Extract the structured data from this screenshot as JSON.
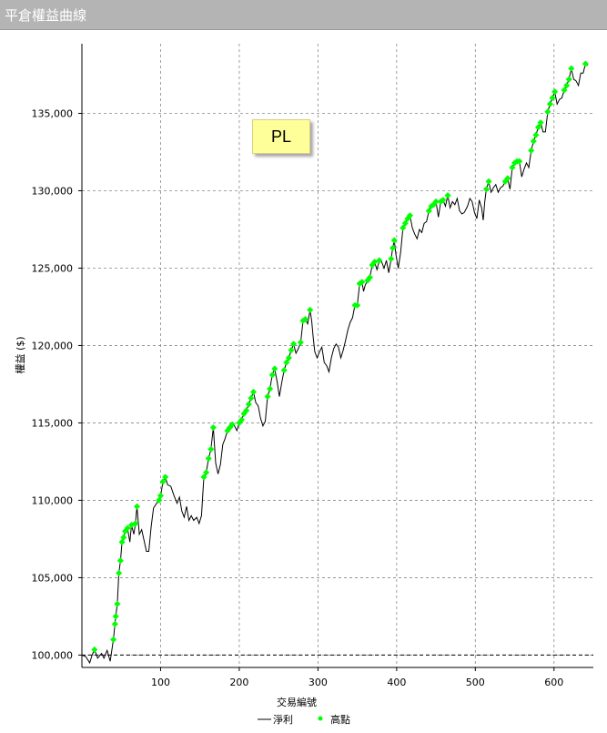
{
  "window": {
    "title": "平倉權益曲線"
  },
  "annotation": {
    "text": "PL"
  },
  "legend": {
    "net_label": "淨利",
    "high_label": "高點"
  },
  "colors": {
    "line": "#000000",
    "marker": "#00ff00",
    "title_bar": "#b4b4b4"
  },
  "chart_data": {
    "type": "line",
    "title": "",
    "xlabel": "交易編號",
    "ylabel": "權益 ($)",
    "xlim": [
      0,
      650
    ],
    "ylim": [
      99200,
      139500
    ],
    "xticks": [
      100,
      200,
      300,
      400,
      500,
      600
    ],
    "xtick_labels": [
      "100",
      "200",
      "300",
      "400",
      "500",
      "600"
    ],
    "yticks": [
      100000,
      105000,
      110000,
      115000,
      120000,
      125000,
      130000,
      135000
    ],
    "ytick_labels": [
      "100,000",
      "105,000",
      "110,000",
      "115,000",
      "120,000",
      "125,000",
      "130,000",
      "135,000"
    ],
    "baseline": 100000,
    "grid": true,
    "legend_position": "bottom",
    "series": [
      {
        "name": "淨利",
        "style": "line",
        "points": [
          [
            0,
            100000
          ],
          [
            5,
            99900
          ],
          [
            10,
            99500
          ],
          [
            13,
            100000
          ],
          [
            16,
            100350
          ],
          [
            20,
            99800
          ],
          [
            25,
            100100
          ],
          [
            28,
            99800
          ],
          [
            32,
            100300
          ],
          [
            36,
            99600
          ],
          [
            40,
            101000
          ],
          [
            43,
            102500
          ],
          [
            45,
            103300
          ],
          [
            47,
            105300
          ],
          [
            49,
            106100
          ],
          [
            51,
            107300
          ],
          [
            53,
            107600
          ],
          [
            55,
            108000
          ],
          [
            58,
            108200
          ],
          [
            61,
            107300
          ],
          [
            63,
            108400
          ],
          [
            66,
            107800
          ],
          [
            68,
            108500
          ],
          [
            70,
            109600
          ],
          [
            73,
            107800
          ],
          [
            76,
            108100
          ],
          [
            79,
            107400
          ],
          [
            82,
            106700
          ],
          [
            85,
            106700
          ],
          [
            88,
            108300
          ],
          [
            91,
            109500
          ],
          [
            95,
            109800
          ],
          [
            98,
            110000
          ],
          [
            100,
            110300
          ],
          [
            103,
            111200
          ],
          [
            106,
            111500
          ],
          [
            109,
            111000
          ],
          [
            113,
            110900
          ],
          [
            117,
            110300
          ],
          [
            121,
            109800
          ],
          [
            124,
            110200
          ],
          [
            127,
            109300
          ],
          [
            130,
            108900
          ],
          [
            133,
            109600
          ],
          [
            136,
            108700
          ],
          [
            139,
            109000
          ],
          [
            142,
            108700
          ],
          [
            146,
            108900
          ],
          [
            149,
            108500
          ],
          [
            152,
            109000
          ],
          [
            155,
            111500
          ],
          [
            158,
            111800
          ],
          [
            161,
            112700
          ],
          [
            164,
            113300
          ],
          [
            167,
            114700
          ],
          [
            170,
            112400
          ],
          [
            173,
            111700
          ],
          [
            176,
            112300
          ],
          [
            179,
            113600
          ],
          [
            182,
            114000
          ],
          [
            185,
            114500
          ],
          [
            188,
            114700
          ],
          [
            191,
            114900
          ],
          [
            194,
            114800
          ],
          [
            197,
            114500
          ],
          [
            200,
            115000
          ],
          [
            203,
            115200
          ],
          [
            206,
            115600
          ],
          [
            209,
            115800
          ],
          [
            212,
            116200
          ],
          [
            215,
            116600
          ],
          [
            218,
            117000
          ],
          [
            221,
            116300
          ],
          [
            224,
            116100
          ],
          [
            227,
            115300
          ],
          [
            230,
            114800
          ],
          [
            233,
            115100
          ],
          [
            236,
            116700
          ],
          [
            239,
            117200
          ],
          [
            242,
            118100
          ],
          [
            245,
            118500
          ],
          [
            248,
            117700
          ],
          [
            251,
            116700
          ],
          [
            254,
            117600
          ],
          [
            257,
            118400
          ],
          [
            260,
            118900
          ],
          [
            263,
            119200
          ],
          [
            266,
            119700
          ],
          [
            269,
            120100
          ],
          [
            272,
            119500
          ],
          [
            275,
            119800
          ],
          [
            278,
            120200
          ],
          [
            281,
            121600
          ],
          [
            284,
            121700
          ],
          [
            287,
            121400
          ],
          [
            290,
            122300
          ],
          [
            292,
            121600
          ],
          [
            294,
            120500
          ],
          [
            296,
            119600
          ],
          [
            299,
            119200
          ],
          [
            302,
            119600
          ],
          [
            305,
            119900
          ],
          [
            308,
            118900
          ],
          [
            311,
            118700
          ],
          [
            314,
            118300
          ],
          [
            317,
            119200
          ],
          [
            320,
            119800
          ],
          [
            323,
            120100
          ],
          [
            326,
            119900
          ],
          [
            329,
            119200
          ],
          [
            332,
            119700
          ],
          [
            335,
            120300
          ],
          [
            338,
            121000
          ],
          [
            341,
            121500
          ],
          [
            344,
            121800
          ],
          [
            347,
            122600
          ],
          [
            350,
            122600
          ],
          [
            353,
            124000
          ],
          [
            356,
            124100
          ],
          [
            358,
            123500
          ],
          [
            360,
            123900
          ],
          [
            363,
            124200
          ],
          [
            366,
            124400
          ],
          [
            369,
            125200
          ],
          [
            372,
            125400
          ],
          [
            375,
            124900
          ],
          [
            378,
            125500
          ],
          [
            381,
            125400
          ],
          [
            384,
            125000
          ],
          [
            387,
            125500
          ],
          [
            390,
            124700
          ],
          [
            393,
            125600
          ],
          [
            395,
            126300
          ],
          [
            397,
            126800
          ],
          [
            399,
            125900
          ],
          [
            402,
            125000
          ],
          [
            405,
            126000
          ],
          [
            408,
            127600
          ],
          [
            411,
            127900
          ],
          [
            414,
            128200
          ],
          [
            417,
            128400
          ],
          [
            420,
            127600
          ],
          [
            423,
            127200
          ],
          [
            426,
            126900
          ],
          [
            429,
            127500
          ],
          [
            432,
            127300
          ],
          [
            435,
            127900
          ],
          [
            438,
            128000
          ],
          [
            441,
            128700
          ],
          [
            444,
            129000
          ],
          [
            447,
            129100
          ],
          [
            450,
            129300
          ],
          [
            453,
            128300
          ],
          [
            456,
            129300
          ],
          [
            459,
            129400
          ],
          [
            462,
            129000
          ],
          [
            465,
            129700
          ],
          [
            468,
            128900
          ],
          [
            471,
            129300
          ],
          [
            474,
            129100
          ],
          [
            477,
            129500
          ],
          [
            480,
            128700
          ],
          [
            483,
            128500
          ],
          [
            486,
            128600
          ],
          [
            490,
            129000
          ],
          [
            493,
            129500
          ],
          [
            496,
            129300
          ],
          [
            499,
            128600
          ],
          [
            502,
            128200
          ],
          [
            505,
            129400
          ],
          [
            508,
            128900
          ],
          [
            510,
            128100
          ],
          [
            512,
            129300
          ],
          [
            514,
            130100
          ],
          [
            517,
            130600
          ],
          [
            520,
            129900
          ],
          [
            523,
            130200
          ],
          [
            526,
            130400
          ],
          [
            529,
            129900
          ],
          [
            532,
            130200
          ],
          [
            535,
            130300
          ],
          [
            538,
            130600
          ],
          [
            541,
            130800
          ],
          [
            544,
            130100
          ],
          [
            547,
            131500
          ],
          [
            550,
            131800
          ],
          [
            553,
            131900
          ],
          [
            556,
            131900
          ],
          [
            559,
            130900
          ],
          [
            562,
            131400
          ],
          [
            565,
            131800
          ],
          [
            568,
            131500
          ],
          [
            571,
            132600
          ],
          [
            574,
            133200
          ],
          [
            577,
            133600
          ],
          [
            580,
            134100
          ],
          [
            583,
            134400
          ],
          [
            586,
            133800
          ],
          [
            589,
            133800
          ],
          [
            592,
            135100
          ],
          [
            595,
            135600
          ],
          [
            598,
            136000
          ],
          [
            601,
            136400
          ],
          [
            604,
            135600
          ],
          [
            607,
            135900
          ],
          [
            610,
            136000
          ],
          [
            613,
            136500
          ],
          [
            616,
            136800
          ],
          [
            619,
            137200
          ],
          [
            622,
            137900
          ],
          [
            625,
            137200
          ],
          [
            628,
            137100
          ],
          [
            631,
            136800
          ],
          [
            634,
            137600
          ],
          [
            637,
            137600
          ],
          [
            640,
            138200
          ],
          [
            643,
            138100
          ]
        ]
      },
      {
        "name": "高點",
        "style": "markers",
        "points": [
          [
            16,
            100350
          ],
          [
            40,
            101000
          ],
          [
            42,
            102000
          ],
          [
            43,
            102500
          ],
          [
            45,
            103300
          ],
          [
            47,
            105300
          ],
          [
            49,
            106100
          ],
          [
            51,
            107300
          ],
          [
            53,
            107600
          ],
          [
            55,
            108000
          ],
          [
            58,
            108200
          ],
          [
            63,
            108400
          ],
          [
            68,
            108500
          ],
          [
            70,
            109600
          ],
          [
            98,
            110000
          ],
          [
            100,
            110300
          ],
          [
            103,
            111200
          ],
          [
            106,
            111500
          ],
          [
            155,
            111500
          ],
          [
            158,
            111800
          ],
          [
            161,
            112700
          ],
          [
            164,
            113300
          ],
          [
            167,
            114700
          ],
          [
            185,
            114500
          ],
          [
            188,
            114700
          ],
          [
            191,
            114900
          ],
          [
            200,
            115000
          ],
          [
            203,
            115200
          ],
          [
            206,
            115600
          ],
          [
            209,
            115800
          ],
          [
            212,
            116200
          ],
          [
            215,
            116600
          ],
          [
            218,
            117000
          ],
          [
            236,
            116700
          ],
          [
            239,
            117200
          ],
          [
            242,
            118100
          ],
          [
            245,
            118500
          ],
          [
            257,
            118400
          ],
          [
            260,
            118900
          ],
          [
            263,
            119200
          ],
          [
            266,
            119700
          ],
          [
            269,
            120100
          ],
          [
            278,
            120200
          ],
          [
            281,
            121600
          ],
          [
            284,
            121700
          ],
          [
            290,
            122300
          ],
          [
            347,
            122600
          ],
          [
            350,
            122600
          ],
          [
            353,
            124000
          ],
          [
            356,
            124100
          ],
          [
            363,
            124200
          ],
          [
            366,
            124400
          ],
          [
            369,
            125200
          ],
          [
            372,
            125400
          ],
          [
            378,
            125500
          ],
          [
            393,
            125600
          ],
          [
            395,
            126300
          ],
          [
            397,
            126800
          ],
          [
            408,
            127600
          ],
          [
            411,
            127900
          ],
          [
            414,
            128200
          ],
          [
            417,
            128400
          ],
          [
            441,
            128700
          ],
          [
            444,
            129000
          ],
          [
            447,
            129100
          ],
          [
            450,
            129300
          ],
          [
            456,
            129300
          ],
          [
            459,
            129400
          ],
          [
            465,
            129700
          ],
          [
            514,
            130100
          ],
          [
            517,
            130600
          ],
          [
            538,
            130600
          ],
          [
            541,
            130800
          ],
          [
            547,
            131500
          ],
          [
            550,
            131800
          ],
          [
            553,
            131900
          ],
          [
            556,
            131900
          ],
          [
            571,
            132600
          ],
          [
            574,
            133200
          ],
          [
            577,
            133600
          ],
          [
            580,
            134100
          ],
          [
            583,
            134400
          ],
          [
            592,
            135100
          ],
          [
            595,
            135600
          ],
          [
            598,
            136000
          ],
          [
            601,
            136400
          ],
          [
            613,
            136500
          ],
          [
            616,
            136800
          ],
          [
            619,
            137200
          ],
          [
            622,
            137900
          ],
          [
            640,
            138200
          ]
        ]
      }
    ]
  }
}
